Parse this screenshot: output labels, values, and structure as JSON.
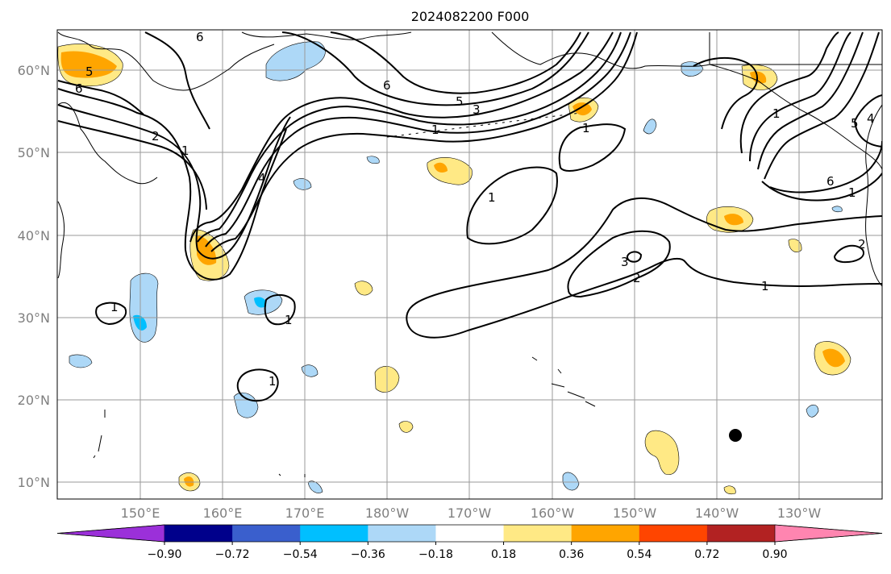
{
  "title": "2024082200 F000",
  "lat_labels": [
    "60°N",
    "50°N",
    "40°N",
    "30°N",
    "20°N",
    "10°N"
  ],
  "lon_labels": [
    "150°E",
    "160°E",
    "170°E",
    "180°W",
    "170°W",
    "160°W",
    "150°W",
    "140°W",
    "130°W"
  ],
  "colorbar": {
    "tick_labels": [
      "−0.90",
      "−0.72",
      "−0.54",
      "−0.36",
      "−0.18",
      "0.18",
      "0.36",
      "0.54",
      "0.72",
      "0.90"
    ],
    "colors": [
      "#9b30d9",
      "#00008b",
      "#3a5fcd",
      "#00bfff",
      "#add8f7",
      "#ffffff",
      "#ffe985",
      "#ffa500",
      "#ff4500",
      "#b22222",
      "#ff85b0"
    ]
  },
  "contour_labels": [
    "6",
    "5",
    "6",
    "2",
    "1",
    "4",
    "6",
    "5",
    "3",
    "1",
    "1",
    "1",
    "1",
    "2",
    "3",
    "1",
    "1",
    "1",
    "1",
    "2",
    "6",
    "1",
    "5",
    "4"
  ],
  "colors": {
    "neg_light": "#add8f7",
    "neg_mid": "#00bfff",
    "pos_light": "#ffe985",
    "pos_mid": "#ffa500"
  },
  "marker": {
    "name": "storm-center-dot",
    "color": "#000000"
  }
}
